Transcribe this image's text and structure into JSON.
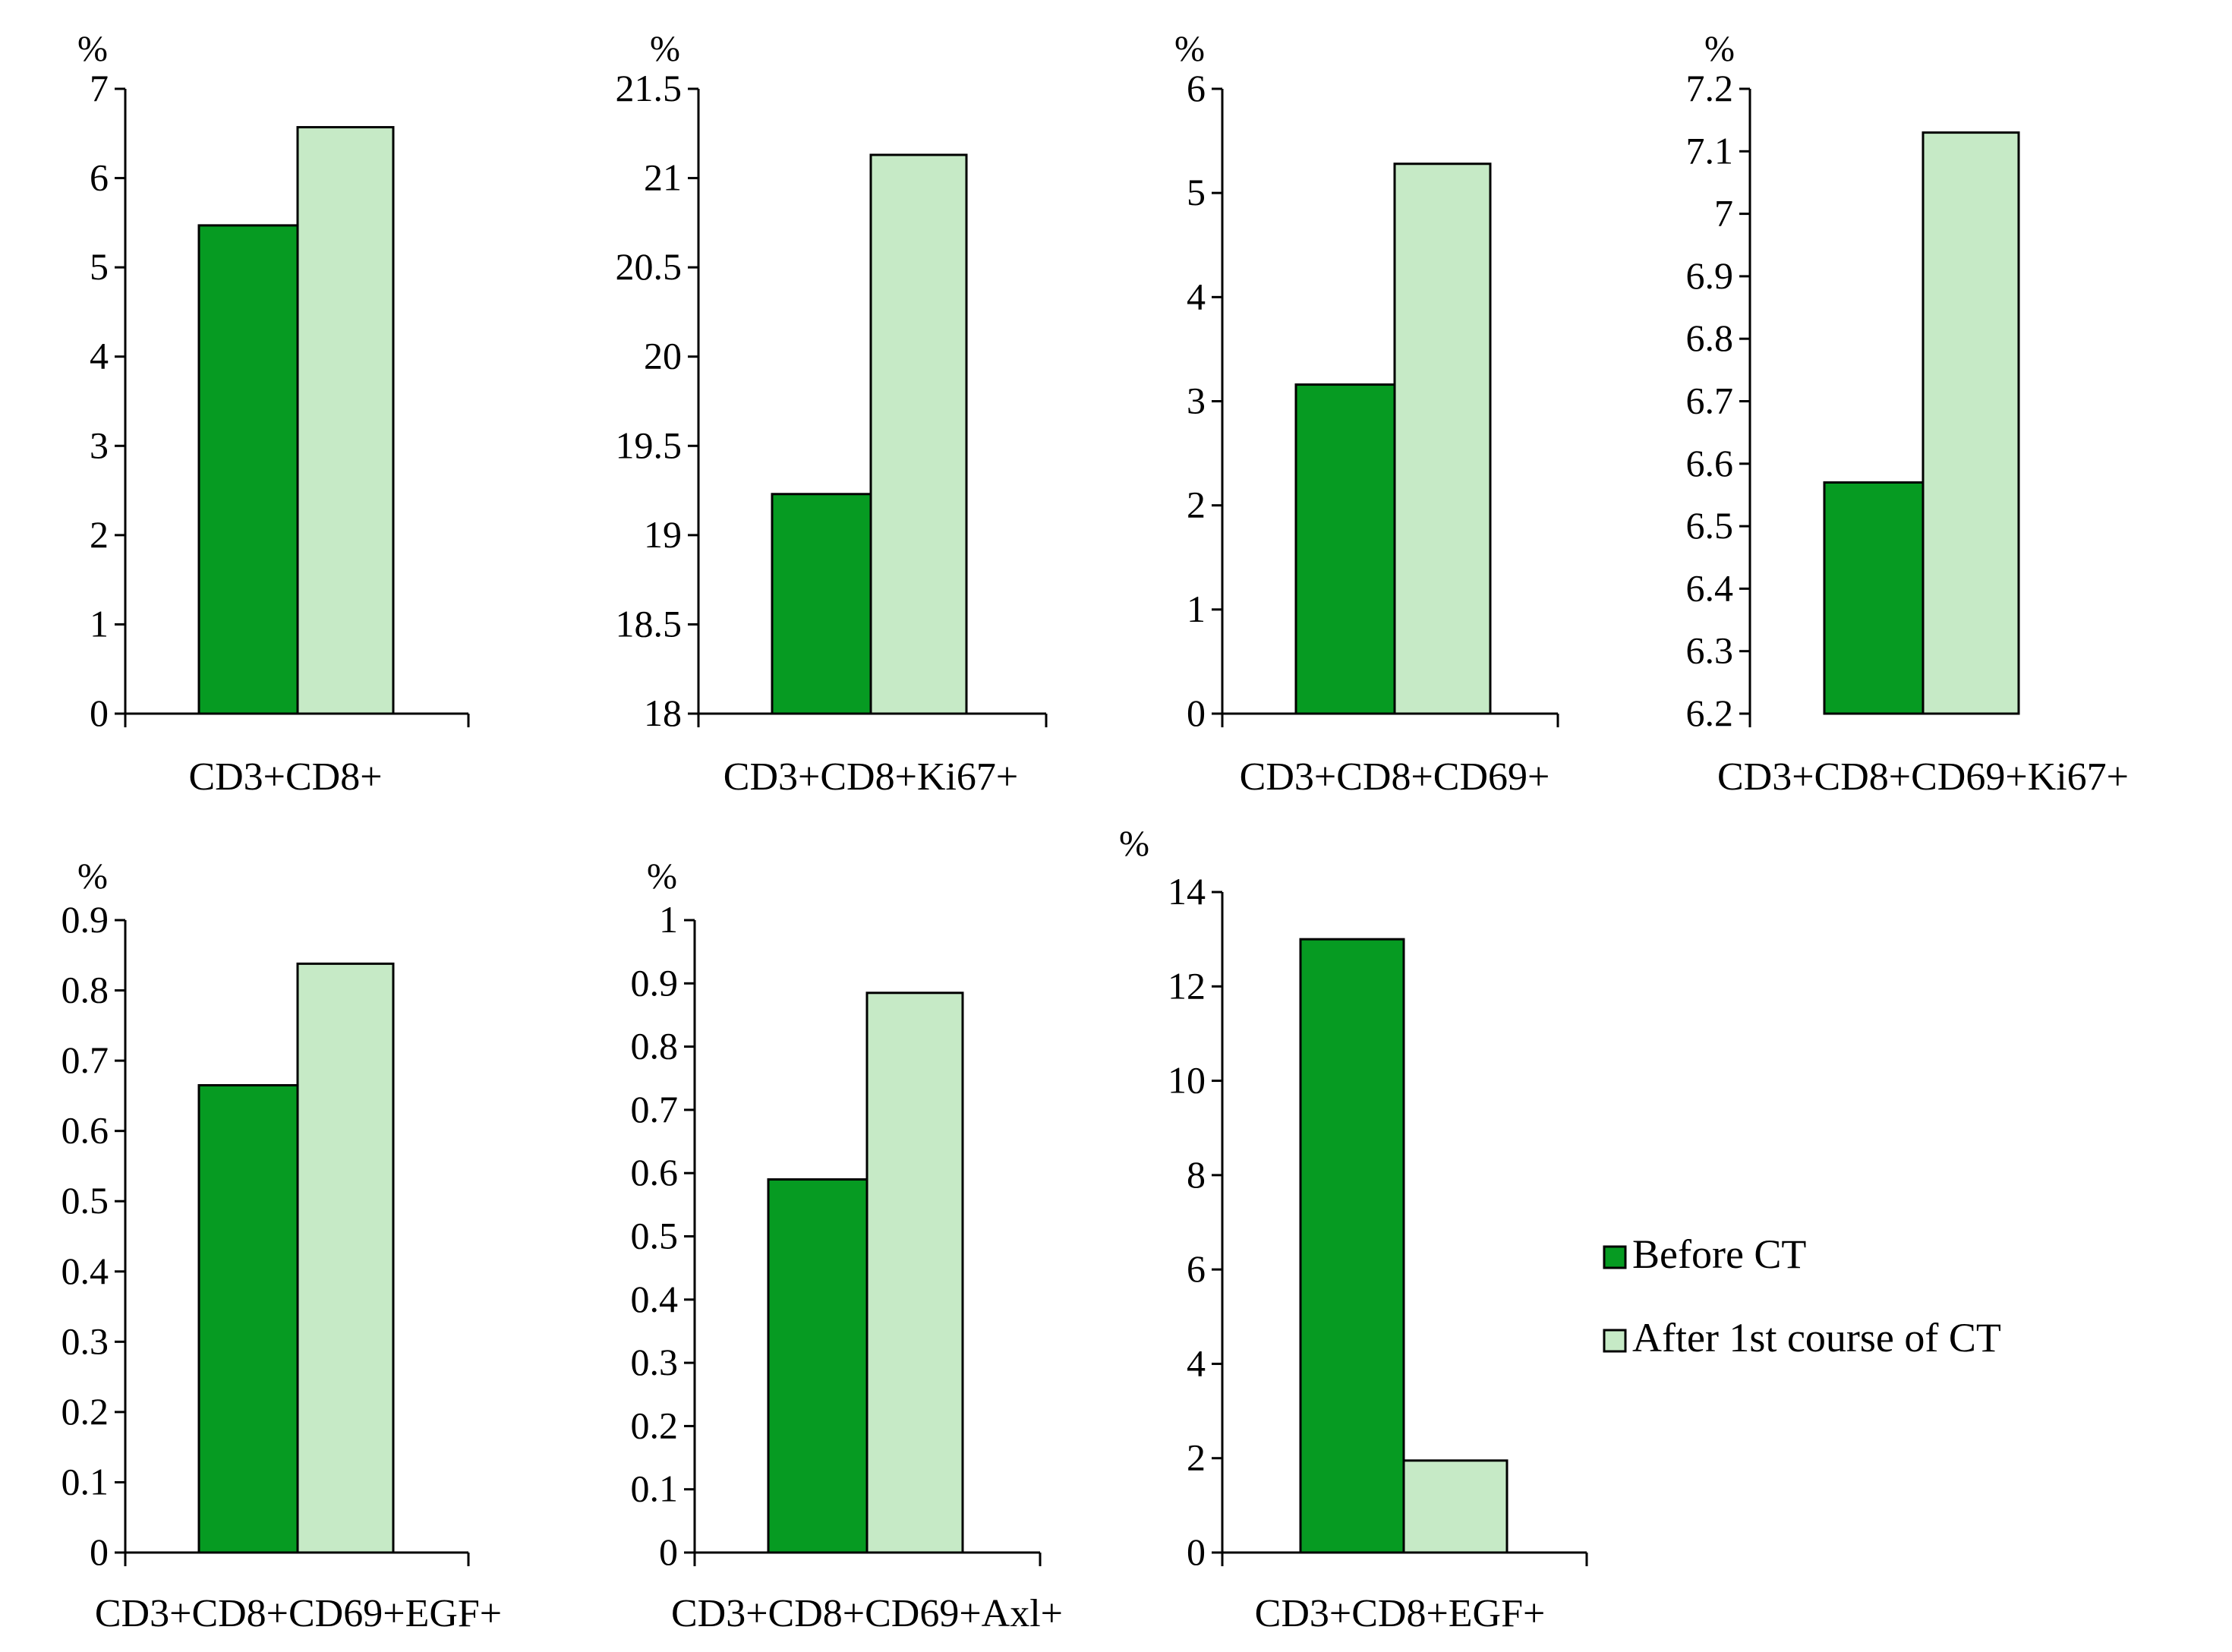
{
  "colors": {
    "before": "#069b22",
    "after": "#c6eac6",
    "outline": "#000000"
  },
  "legend": {
    "before": "Before CT",
    "after": "After 1st course of  CT"
  },
  "chart_data": [
    {
      "type": "bar",
      "title": "",
      "xlabel": "CD3+CD8+",
      "ylabel": "%",
      "ylim": [
        0,
        7
      ],
      "ticks": [
        "0",
        "1",
        "2",
        "3",
        "4",
        "5",
        "6",
        "7"
      ],
      "categories": [
        "CD3+CD8+"
      ],
      "series": [
        {
          "name": "Before CT",
          "values": [
            5.47
          ]
        },
        {
          "name": "After 1st course of  CT",
          "values": [
            6.57
          ]
        }
      ]
    },
    {
      "type": "bar",
      "title": "",
      "xlabel": "CD3+CD8+Ki67+",
      "ylabel": "%",
      "ylim": [
        18,
        21.5
      ],
      "ticks": [
        "18",
        "18.5",
        "19",
        "19.5",
        "20",
        "20.5",
        "21",
        "21.5"
      ],
      "categories": [
        "CD3+CD8+Ki67+"
      ],
      "series": [
        {
          "name": "Before CT",
          "values": [
            19.23
          ]
        },
        {
          "name": "After 1st course of  CT",
          "values": [
            21.13
          ]
        }
      ]
    },
    {
      "type": "bar",
      "title": "",
      "xlabel": "CD3+CD8+CD69+",
      "ylabel": "%",
      "ylim": [
        0,
        6
      ],
      "ticks": [
        "0",
        "1",
        "2",
        "3",
        "4",
        "5",
        "6"
      ],
      "categories": [
        "CD3+CD8+CD69+"
      ],
      "series": [
        {
          "name": "Before CT",
          "values": [
            3.16
          ]
        },
        {
          "name": "After 1st course of  CT",
          "values": [
            5.28
          ]
        }
      ]
    },
    {
      "type": "bar",
      "title": "",
      "xlabel": "CD3+CD8+CD69+Ki67+",
      "ylabel": "%",
      "ylim": [
        6.2,
        7.2
      ],
      "ticks": [
        "6.2",
        "6.3",
        "6.4",
        "6.5",
        "6.6",
        "6.7",
        "6.8",
        "6.9",
        "7",
        "7.1",
        "7.2"
      ],
      "categories": [
        "CD3+CD8+CD69+Ki67+"
      ],
      "series": [
        {
          "name": "Before CT",
          "values": [
            6.57
          ]
        },
        {
          "name": "After 1st course of  CT",
          "values": [
            7.13
          ]
        }
      ]
    },
    {
      "type": "bar",
      "title": "",
      "xlabel": "CD3+CD8+CD69+EGF+",
      "ylabel": "%",
      "ylim": [
        0,
        0.9
      ],
      "ticks": [
        "0",
        "0.1",
        "0.2",
        "0.3",
        "0.4",
        "0.5",
        "0.6",
        "0.7",
        "0.8",
        "0.9"
      ],
      "categories": [
        "CD3+CD8+CD69+EGF+"
      ],
      "series": [
        {
          "name": "Before CT",
          "values": [
            0.665
          ]
        },
        {
          "name": "After 1st course of  CT",
          "values": [
            0.838
          ]
        }
      ]
    },
    {
      "type": "bar",
      "title": "",
      "xlabel": "CD3+CD8+CD69+Axl+",
      "ylabel": "%",
      "ylim": [
        0,
        1
      ],
      "ticks": [
        "0",
        "0.1",
        "0.2",
        "0.3",
        "0.4",
        "0.5",
        "0.6",
        "0.7",
        "0.8",
        "0.9",
        "1"
      ],
      "categories": [
        "CD3+CD8+CD69+Axl+"
      ],
      "series": [
        {
          "name": "Before CT",
          "values": [
            0.59
          ]
        },
        {
          "name": "After 1st course of  CT",
          "values": [
            0.885
          ]
        }
      ]
    },
    {
      "type": "bar",
      "title": "",
      "xlabel": "CD3+CD8+EGF+",
      "ylabel": "%",
      "ylim": [
        0,
        14
      ],
      "ticks": [
        "0",
        "2",
        "4",
        "6",
        "8",
        "10",
        "12",
        "14"
      ],
      "categories": [
        "CD3+CD8+EGF+"
      ],
      "series": [
        {
          "name": "Before CT",
          "values": [
            13.0
          ]
        },
        {
          "name": "After 1st course of  CT",
          "values": [
            1.95
          ]
        }
      ]
    }
  ]
}
